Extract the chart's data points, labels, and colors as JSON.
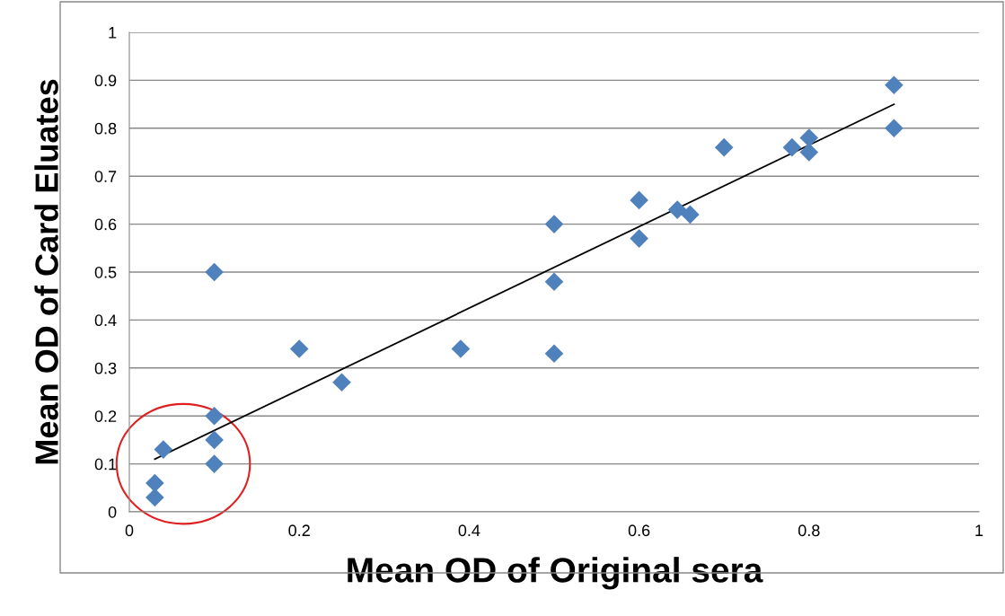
{
  "chart_data": {
    "type": "scatter",
    "xlabel": "Mean OD of Original sera",
    "ylabel": "Mean OD of Card Eluates",
    "xlim": [
      0,
      1
    ],
    "xticks": [
      0,
      0.2,
      0.4,
      0.6,
      0.8,
      1
    ],
    "ylim": [
      0,
      1
    ],
    "yticks": [
      0,
      0.1,
      0.2,
      0.3,
      0.4,
      0.5,
      0.6,
      0.7,
      0.8,
      0.9,
      1
    ],
    "grid": "y",
    "legend": false,
    "marker": "diamond",
    "series": [
      {
        "color": "#4f81bd",
        "x": [
          0.03,
          0.03,
          0.04,
          0.1,
          0.1,
          0.1,
          0.1,
          0.2,
          0.25,
          0.39,
          0.5,
          0.5,
          0.5,
          0.6,
          0.6,
          0.645,
          0.66,
          0.7,
          0.78,
          0.8,
          0.8,
          0.9,
          0.9
        ],
        "values": [
          0.06,
          0.03,
          0.13,
          0.2,
          0.15,
          0.1,
          0.5,
          0.34,
          0.27,
          0.34,
          0.6,
          0.48,
          0.33,
          0.65,
          0.57,
          0.63,
          0.62,
          0.76,
          0.76,
          0.78,
          0.75,
          0.89,
          0.8
        ]
      },
      {
        "type": "line",
        "color": "#000000",
        "x": [
          0.03,
          0.9
        ],
        "values": [
          0.11,
          0.85
        ],
        "marker": "none",
        "line_style": "solid"
      }
    ]
  }
}
